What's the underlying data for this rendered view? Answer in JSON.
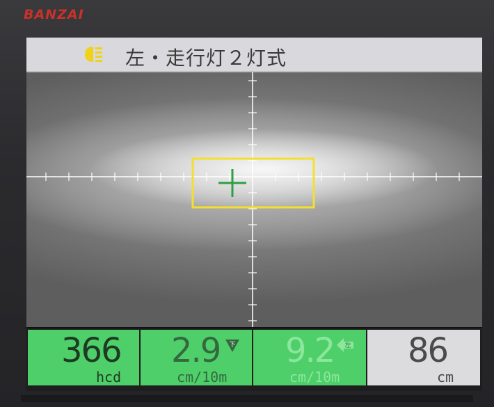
{
  "brand": "BANZAI",
  "title": {
    "icon": "headlamp-icon",
    "text": "左・走行灯２灯式"
  },
  "target_box_color": "#f5df2e",
  "crosshair_color": "#2f9e44",
  "readouts": [
    {
      "value": "366",
      "unit": "hcd",
      "color": "#4fcf6a"
    },
    {
      "value": "2.9",
      "unit": "cm/10m",
      "direction": "下",
      "direction_icon": "down-arrow-icon",
      "color": "#4fcf6a"
    },
    {
      "value": "9.2",
      "unit": "cm/10m",
      "direction": "左",
      "direction_icon": "left-arrow-icon",
      "color": "#4fcf6a"
    },
    {
      "value": "86",
      "unit": "cm",
      "color": "#dcdcdf"
    }
  ]
}
